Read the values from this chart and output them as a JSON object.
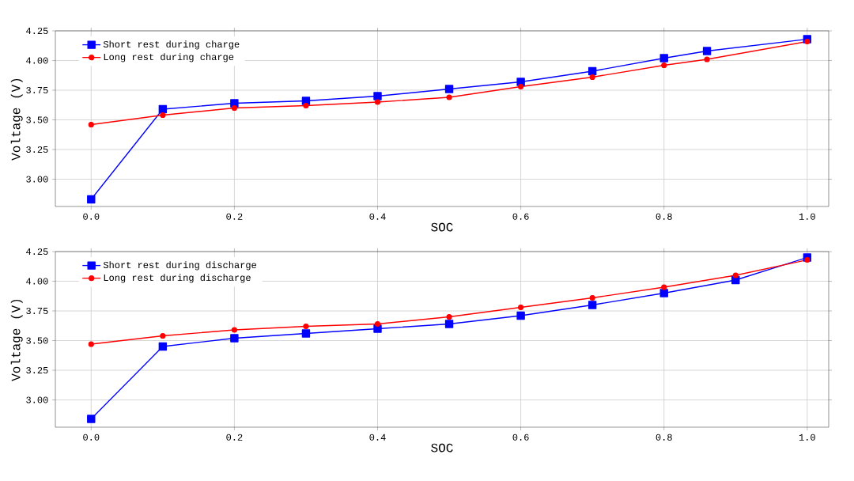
{
  "chart_data": [
    {
      "type": "line",
      "xlabel": "SOC",
      "ylabel": "Voltage (V)",
      "x": [
        0,
        0.1,
        0.2,
        0.3,
        0.4,
        0.5,
        0.6,
        0.7,
        0.8,
        0.86,
        1.0
      ],
      "series": [
        {
          "name": "Short rest during charge",
          "color": "#0000ff",
          "marker": "square",
          "values": [
            2.83,
            3.59,
            3.64,
            3.66,
            3.7,
            3.76,
            3.82,
            3.91,
            4.02,
            4.08,
            4.18
          ]
        },
        {
          "name": "Long rest during charge",
          "color": "#ff0000",
          "marker": "circle",
          "values": [
            3.46,
            3.54,
            3.6,
            3.62,
            3.65,
            3.69,
            3.78,
            3.86,
            3.96,
            4.01,
            4.16
          ]
        }
      ],
      "xlim": [
        -0.05,
        1.03
      ],
      "ylim": [
        2.77,
        4.25
      ],
      "xticks": [
        {
          "value": 0,
          "label": "0.0"
        },
        {
          "value": 0.2,
          "label": "0.2"
        },
        {
          "value": 0.4,
          "label": "0.4"
        },
        {
          "value": 0.6,
          "label": "0.6"
        },
        {
          "value": 0.8,
          "label": "0.8"
        },
        {
          "value": 1.0,
          "label": "1.0"
        }
      ],
      "yticks": [
        {
          "value": 3.0,
          "label": "3.00"
        },
        {
          "value": 3.25,
          "label": "3.25"
        },
        {
          "value": 3.5,
          "label": "3.50"
        },
        {
          "value": 3.75,
          "label": "3.75"
        },
        {
          "value": 4.0,
          "label": "4.00"
        },
        {
          "value": 4.25,
          "label": "4.25"
        }
      ],
      "grid": true,
      "legend": "top left",
      "line_style": "solid"
    },
    {
      "type": "line",
      "xlabel": "SOC",
      "ylabel": "Voltage (V)",
      "x": [
        0,
        0.1,
        0.2,
        0.3,
        0.4,
        0.5,
        0.6,
        0.7,
        0.8,
        0.9,
        1.0
      ],
      "series": [
        {
          "name": "Short rest during discharge",
          "color": "#0000ff",
          "marker": "square",
          "values": [
            2.84,
            3.45,
            3.52,
            3.56,
            3.6,
            3.64,
            3.71,
            3.8,
            3.9,
            4.01,
            4.2
          ]
        },
        {
          "name": "Long rest during discharge",
          "color": "#ff0000",
          "marker": "circle",
          "values": [
            3.47,
            3.54,
            3.59,
            3.62,
            3.64,
            3.7,
            3.78,
            3.86,
            3.95,
            4.05,
            4.18
          ]
        }
      ],
      "xlim": [
        -0.05,
        1.03
      ],
      "ylim": [
        2.77,
        4.25
      ],
      "xticks": [
        {
          "value": 0,
          "label": "0.0"
        },
        {
          "value": 0.2,
          "label": "0.2"
        },
        {
          "value": 0.4,
          "label": "0.4"
        },
        {
          "value": 0.6,
          "label": "0.6"
        },
        {
          "value": 0.8,
          "label": "0.8"
        },
        {
          "value": 1.0,
          "label": "1.0"
        }
      ],
      "yticks": [
        {
          "value": 3.0,
          "label": "3.00"
        },
        {
          "value": 3.25,
          "label": "3.25"
        },
        {
          "value": 3.5,
          "label": "3.50"
        },
        {
          "value": 3.75,
          "label": "3.75"
        },
        {
          "value": 4.0,
          "label": "4.00"
        },
        {
          "value": 4.25,
          "label": "4.25"
        }
      ],
      "grid": true,
      "legend": "top left",
      "line_style": "solid"
    }
  ]
}
